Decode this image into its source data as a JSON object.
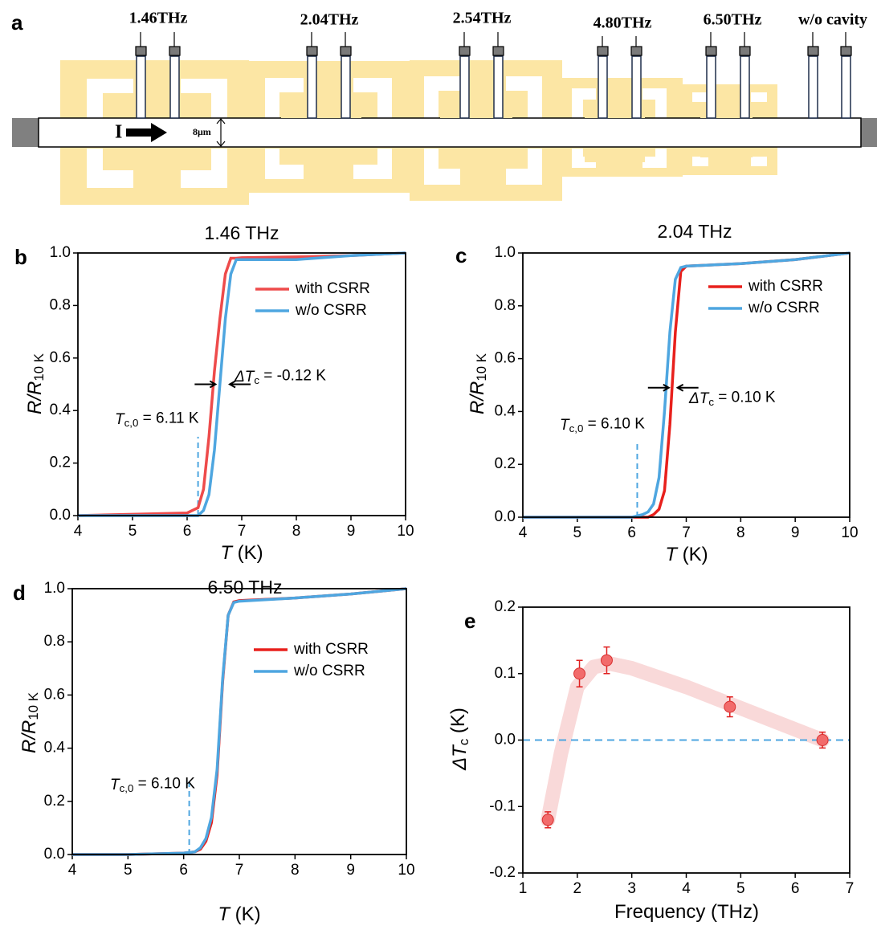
{
  "schematic": {
    "letter": "a",
    "labels": [
      "1.46THz",
      "2.04THz",
      "2.54THz",
      "4.80THz",
      "6.50THz",
      "w/o cavity"
    ],
    "current": "I",
    "width": "8μm"
  },
  "chart_data": [
    {
      "type": "line",
      "letter": "b",
      "title": "1.46 THz",
      "x_label": {
        "main": "T",
        "rest": " (K)"
      },
      "y_label": {
        "main": "R/R",
        "sub": "10 K"
      },
      "x": [
        4,
        5,
        6,
        6.2,
        6.3,
        6.4,
        6.5,
        6.6,
        6.7,
        6.8,
        6.9,
        7,
        8,
        9,
        10
      ],
      "series": [
        {
          "name": "with CSRR",
          "color": "#ee4b4b",
          "values": [
            0,
            0.005,
            0.01,
            0.03,
            0.1,
            0.3,
            0.55,
            0.75,
            0.92,
            0.98,
            0.98,
            0.982,
            0.985,
            0.99,
            1.0
          ]
        },
        {
          "name": "w/o CSRR",
          "color": "#4ea6e0",
          "values": [
            0,
            0,
            0,
            0,
            0.02,
            0.08,
            0.25,
            0.5,
            0.75,
            0.92,
            0.975,
            0.975,
            0.975,
            0.99,
            1.0
          ]
        }
      ],
      "xlim": [
        4,
        10
      ],
      "ylim": [
        0,
        1
      ],
      "xticks": [
        4,
        5,
        6,
        7,
        8,
        9,
        10
      ],
      "yticks": [
        {
          "value": 0,
          "label": "0.0"
        },
        0.2,
        0.4,
        0.6,
        0.8,
        {
          "value": 1,
          "label": "1.0"
        }
      ],
      "tc_line": {
        "x": 6.2,
        "y0": 0,
        "y1": 0.3
      },
      "tc_note": {
        "main": "T",
        "sub": "c,0",
        "rest": " = 6.11 K"
      },
      "delta_arrows": {
        "y": 0.5,
        "x": [
          6.52,
          6.78
        ]
      },
      "delta_note": {
        "main": "ΔT",
        "sub": "c",
        "rest": " = -0.12 K"
      }
    },
    {
      "type": "line",
      "letter": "c",
      "title": "2.04 THz",
      "x_label": {
        "main": "T",
        "rest": " (K)"
      },
      "y_label": {
        "main": "R/R",
        "sub": "10 K"
      },
      "x": [
        4,
        5,
        6,
        6.2,
        6.3,
        6.4,
        6.5,
        6.6,
        6.7,
        6.8,
        6.9,
        7,
        8,
        9,
        10
      ],
      "series": [
        {
          "name": "with CSRR",
          "color": "#e8201c",
          "values": [
            0,
            0,
            0,
            0,
            0,
            0.01,
            0.03,
            0.1,
            0.35,
            0.7,
            0.93,
            0.95,
            0.96,
            0.975,
            1.0
          ]
        },
        {
          "name": "w/o CSRR",
          "color": "#4ea6e0",
          "values": [
            0,
            0,
            0,
            0.01,
            0.02,
            0.05,
            0.15,
            0.4,
            0.7,
            0.9,
            0.945,
            0.95,
            0.96,
            0.975,
            1.0
          ]
        }
      ],
      "xlim": [
        4,
        10
      ],
      "ylim": [
        0,
        1
      ],
      "xticks": [
        4,
        5,
        6,
        7,
        8,
        9,
        10
      ],
      "yticks": [
        {
          "value": 0,
          "label": "0.0"
        },
        0.2,
        0.4,
        0.6,
        0.8,
        {
          "value": 1,
          "label": "1.0"
        }
      ],
      "tc_line": {
        "x": 6.1,
        "y0": 0,
        "y1": 0.28
      },
      "tc_note": {
        "main": "T",
        "sub": "c,0",
        "rest": " = 6.10 K"
      },
      "delta_arrows": {
        "y": 0.49,
        "x": [
          6.68,
          6.84
        ]
      },
      "delta_note": {
        "main": "ΔT",
        "sub": "c",
        "rest": " = 0.10 K"
      }
    },
    {
      "type": "line",
      "letter": "d",
      "title": "6.50 THz",
      "x_label": {
        "main": "T",
        "rest": " (K)"
      },
      "y_label": {
        "main": "R/R",
        "sub": "10 K"
      },
      "x": [
        4,
        5,
        6,
        6.2,
        6.3,
        6.4,
        6.5,
        6.6,
        6.7,
        6.8,
        6.9,
        7,
        8,
        9,
        10
      ],
      "series": [
        {
          "name": "with CSRR",
          "color": "#e8201c",
          "values": [
            0,
            0,
            0.005,
            0.01,
            0.02,
            0.05,
            0.12,
            0.3,
            0.65,
            0.9,
            0.95,
            0.955,
            0.965,
            0.98,
            1.0
          ]
        },
        {
          "name": "w/o CSRR",
          "color": "#4ea6e0",
          "values": [
            0,
            0,
            0.005,
            0.01,
            0.025,
            0.06,
            0.14,
            0.32,
            0.66,
            0.9,
            0.948,
            0.953,
            0.965,
            0.98,
            1.0
          ]
        }
      ],
      "xlim": [
        4,
        10
      ],
      "ylim": [
        0,
        1
      ],
      "xticks": [
        4,
        5,
        6,
        7,
        8,
        9,
        10
      ],
      "yticks": [
        {
          "value": 0,
          "label": "0.0"
        },
        0.2,
        0.4,
        0.6,
        0.8,
        {
          "value": 1,
          "label": "1.0"
        }
      ],
      "tc_line": {
        "x": 6.1,
        "y0": 0,
        "y1": 0.28
      },
      "tc_note": {
        "main": "T",
        "sub": "c,0",
        "rest": " = 6.10 K"
      }
    },
    {
      "type": "scatter",
      "letter": "e",
      "x_label": {
        "main": "Frequency (THz)"
      },
      "y_label": {
        "main": "ΔT",
        "sub": "c",
        "rest": " (K)"
      },
      "x": [
        1.46,
        2.04,
        2.54,
        4.8,
        6.5
      ],
      "values": [
        -0.12,
        0.1,
        0.12,
        0.05,
        0
      ],
      "errors": [
        0.012,
        0.02,
        0.02,
        0.015,
        0.012
      ],
      "color": "#f26b6b",
      "trend": {
        "x": [
          1.46,
          1.7,
          2.0,
          2.3,
          2.6,
          3,
          4,
          5,
          6.5
        ],
        "values": [
          -0.12,
          -0.02,
          0.08,
          0.11,
          0.115,
          0.108,
          0.08,
          0.048,
          0
        ],
        "color": "#f9d9d9"
      },
      "ref_y": 0,
      "xlim": [
        1,
        7
      ],
      "ylim": [
        -0.2,
        0.2
      ],
      "xticks": [
        1,
        2,
        3,
        4,
        5,
        6,
        7
      ],
      "yticks": [
        -0.2,
        -0.1,
        {
          "value": 0,
          "label": "0.0"
        },
        0.1,
        0.2
      ]
    }
  ]
}
